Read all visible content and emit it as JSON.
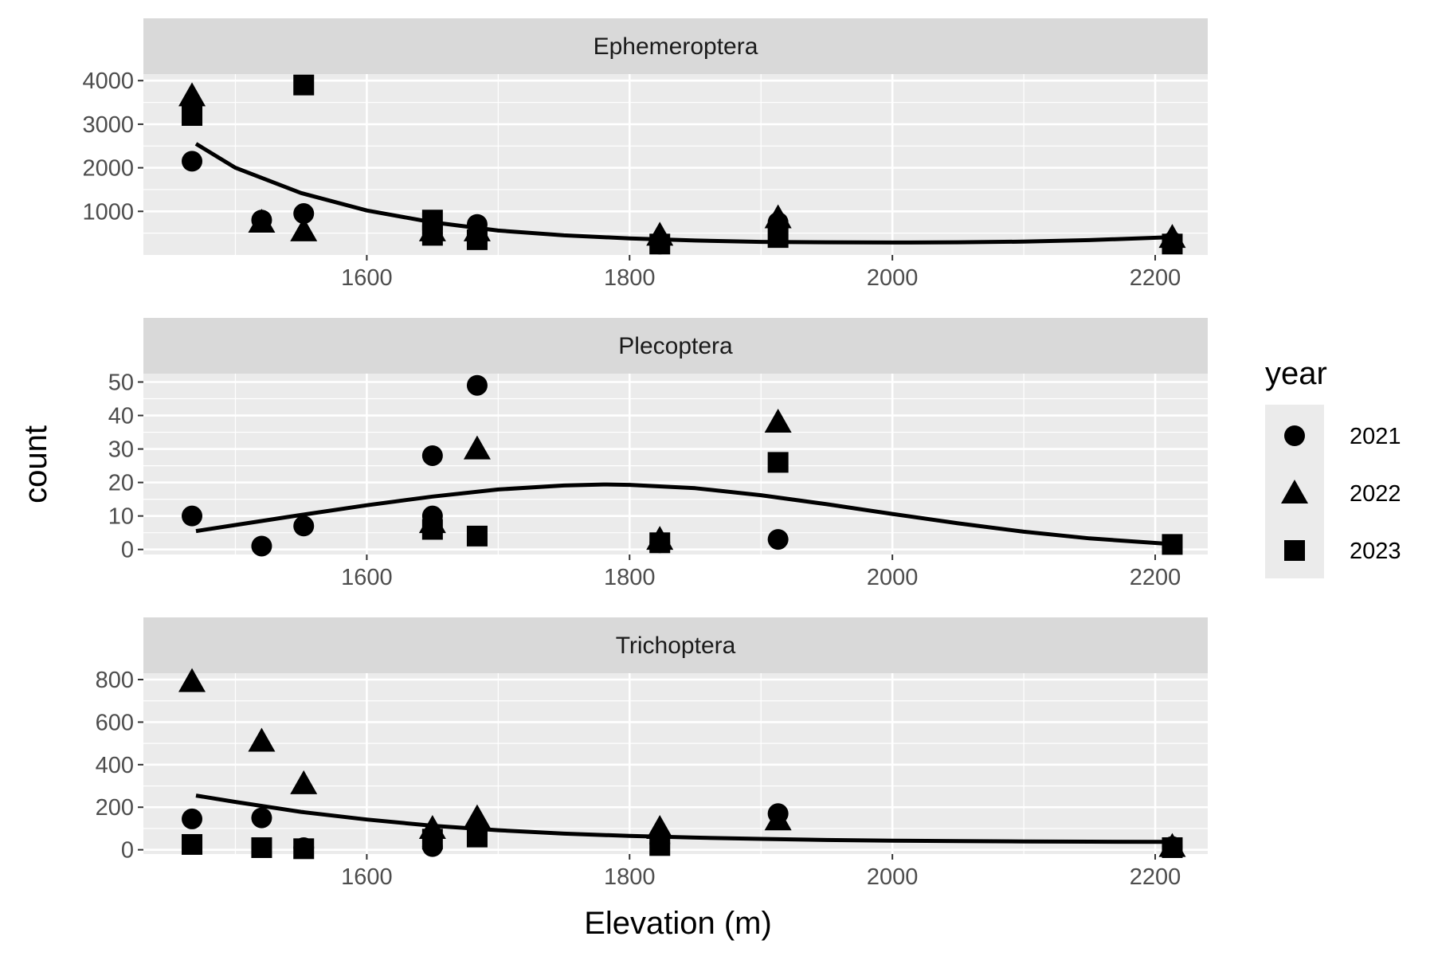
{
  "chart_data": {
    "type": "scatter",
    "x_label": "Elevation (m)",
    "y_label": "count",
    "x_range": [
      1430,
      2240
    ],
    "x_ticks": [
      1600,
      1800,
      2000,
      2200
    ],
    "legend": {
      "title": "year",
      "placement": "right",
      "entries": [
        {
          "label": "2021",
          "shape": "circle"
        },
        {
          "label": "2022",
          "shape": "triangle"
        },
        {
          "label": "2023",
          "shape": "square"
        }
      ]
    },
    "panels": [
      {
        "title": "Ephemeroptera",
        "y_range": [
          0,
          4150
        ],
        "y_ticks": [
          1000,
          2000,
          3000,
          4000
        ],
        "series": [
          {
            "name": "2021",
            "shape": "circle",
            "points": [
              [
                1467,
                2150
              ],
              [
                1520,
                800
              ],
              [
                1552,
                950
              ],
              [
                1650,
                500
              ],
              [
                1684,
                700
              ],
              [
                1823,
                250
              ],
              [
                1913,
                750
              ],
              [
                2213,
                300
              ]
            ]
          },
          {
            "name": "2022",
            "shape": "triangle",
            "points": [
              [
                1467,
                3650
              ],
              [
                1520,
                750
              ],
              [
                1552,
                550
              ],
              [
                1650,
                550
              ],
              [
                1684,
                550
              ],
              [
                1823,
                450
              ],
              [
                1913,
                850
              ],
              [
                2213,
                400
              ]
            ]
          },
          {
            "name": "2023",
            "shape": "square",
            "points": [
              [
                1467,
                3200
              ],
              [
                1552,
                3900
              ],
              [
                1650,
                800
              ],
              [
                1650,
                450
              ],
              [
                1684,
                350
              ],
              [
                1823,
                250
              ],
              [
                1913,
                400
              ],
              [
                2213,
                250
              ]
            ]
          }
        ],
        "fit": [
          [
            1470,
            2550
          ],
          [
            1500,
            2000
          ],
          [
            1550,
            1420
          ],
          [
            1600,
            1020
          ],
          [
            1650,
            750
          ],
          [
            1700,
            560
          ],
          [
            1750,
            450
          ],
          [
            1800,
            380
          ],
          [
            1850,
            330
          ],
          [
            1900,
            300
          ],
          [
            1950,
            290
          ],
          [
            2000,
            285
          ],
          [
            2050,
            290
          ],
          [
            2100,
            305
          ],
          [
            2150,
            340
          ],
          [
            2213,
            410
          ]
        ]
      },
      {
        "title": "Plecoptera",
        "y_range": [
          -1.5,
          52.5
        ],
        "y_ticks": [
          0,
          10,
          20,
          30,
          40,
          50
        ],
        "series": [
          {
            "name": "2021",
            "shape": "circle",
            "points": [
              [
                1467,
                10
              ],
              [
                1520,
                1
              ],
              [
                1552,
                7
              ],
              [
                1650,
                28
              ],
              [
                1650,
                10
              ],
              [
                1684,
                49
              ],
              [
                1823,
                2
              ],
              [
                1913,
                3
              ]
            ]
          },
          {
            "name": "2022",
            "shape": "triangle",
            "points": [
              [
                1650,
                8
              ],
              [
                1684,
                30
              ],
              [
                1823,
                3
              ],
              [
                1913,
                38
              ]
            ]
          },
          {
            "name": "2023",
            "shape": "square",
            "points": [
              [
                1650,
                6
              ],
              [
                1684,
                4
              ],
              [
                1823,
                2
              ],
              [
                1913,
                26
              ],
              [
                2213,
                1.5
              ]
            ]
          }
        ],
        "fit": [
          [
            1470,
            5.5
          ],
          [
            1500,
            7.3
          ],
          [
            1550,
            10.3
          ],
          [
            1600,
            13.2
          ],
          [
            1650,
            15.8
          ],
          [
            1700,
            17.9
          ],
          [
            1750,
            19.1
          ],
          [
            1780,
            19.4
          ],
          [
            1800,
            19.3
          ],
          [
            1850,
            18.3
          ],
          [
            1900,
            16.2
          ],
          [
            1950,
            13.5
          ],
          [
            2000,
            10.6
          ],
          [
            2050,
            7.8
          ],
          [
            2100,
            5.3
          ],
          [
            2150,
            3.3
          ],
          [
            2213,
            1.6
          ]
        ]
      },
      {
        "title": "Trichoptera",
        "y_range": [
          -20,
          830
        ],
        "y_ticks": [
          0,
          200,
          400,
          600,
          800
        ],
        "series": [
          {
            "name": "2021",
            "shape": "circle",
            "points": [
              [
                1467,
                145
              ],
              [
                1520,
                150
              ],
              [
                1552,
                10
              ],
              [
                1650,
                15
              ],
              [
                1684,
                110
              ],
              [
                1823,
                30
              ],
              [
                1913,
                170
              ],
              [
                2213,
                15
              ]
            ]
          },
          {
            "name": "2022",
            "shape": "triangle",
            "points": [
              [
                1467,
                790
              ],
              [
                1520,
                510
              ],
              [
                1552,
                310
              ],
              [
                1650,
                100
              ],
              [
                1684,
                150
              ],
              [
                1823,
                100
              ],
              [
                1913,
                140
              ],
              [
                2213,
                15
              ]
            ]
          },
          {
            "name": "2023",
            "shape": "square",
            "points": [
              [
                1467,
                25
              ],
              [
                1520,
                10
              ],
              [
                1552,
                5
              ],
              [
                1650,
                50
              ],
              [
                1684,
                60
              ],
              [
                1823,
                20
              ],
              [
                2213,
                10
              ]
            ]
          }
        ],
        "fit": [
          [
            1470,
            255
          ],
          [
            1500,
            225
          ],
          [
            1550,
            178
          ],
          [
            1600,
            142
          ],
          [
            1650,
            113
          ],
          [
            1700,
            92
          ],
          [
            1750,
            76
          ],
          [
            1800,
            65
          ],
          [
            1850,
            57
          ],
          [
            1900,
            51
          ],
          [
            1950,
            46
          ],
          [
            2000,
            43
          ],
          [
            2050,
            41
          ],
          [
            2100,
            39
          ],
          [
            2150,
            38
          ],
          [
            2213,
            37
          ]
        ]
      }
    ]
  }
}
